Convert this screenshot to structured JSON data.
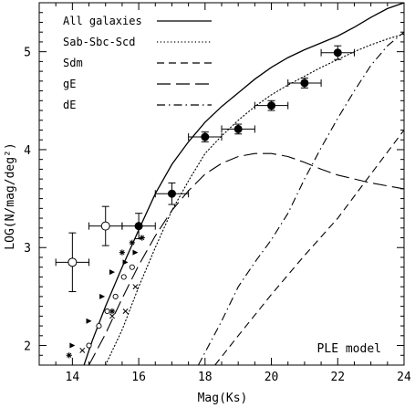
{
  "chart_data": {
    "type": "line",
    "xlabel": "Mag(Ks)",
    "ylabel": "LOG(N/mag/deg²)",
    "xlim": [
      13,
      24
    ],
    "ylim": [
      1.8,
      5.5
    ],
    "x_ticks": [
      14,
      16,
      18,
      20,
      22,
      24
    ],
    "x_tick_labels": [
      "14",
      "16",
      "18",
      "20",
      "22",
      "24"
    ],
    "y_ticks": [
      2,
      3,
      4,
      5
    ],
    "y_tick_labels": [
      "2",
      "3",
      "4",
      "5"
    ],
    "annotation": "PLE model",
    "legend_position": "top-left",
    "series": [
      {
        "name": "All galaxies",
        "style": "solid",
        "x": [
          14.35,
          14.6,
          15.0,
          15.5,
          16.0,
          16.5,
          17.0,
          17.5,
          18.0,
          18.5,
          19.0,
          19.5,
          20.0,
          20.5,
          21.0,
          21.5,
          22.0,
          22.5,
          23.0,
          23.5,
          24.0
        ],
        "y": [
          1.8,
          2.05,
          2.4,
          2.8,
          3.18,
          3.55,
          3.85,
          4.08,
          4.28,
          4.44,
          4.58,
          4.72,
          4.84,
          4.94,
          5.02,
          5.09,
          5.16,
          5.25,
          5.35,
          5.44,
          5.5
        ]
      },
      {
        "name": "Sab-Sbc-Scd",
        "style": "dotted",
        "x": [
          15.0,
          15.5,
          16.0,
          16.5,
          17.0,
          17.5,
          18.0,
          18.5,
          19.0,
          19.5,
          20.0,
          20.5,
          21.0,
          21.5,
          22.0,
          22.5,
          23.0,
          23.5,
          24.0
        ],
        "y": [
          1.8,
          2.16,
          2.6,
          3.0,
          3.38,
          3.68,
          3.96,
          4.14,
          4.3,
          4.44,
          4.56,
          4.66,
          4.75,
          4.84,
          4.92,
          5.0,
          5.07,
          5.13,
          5.18
        ]
      },
      {
        "name": "Sdm",
        "style": "dashed",
        "x": [
          18.3,
          19.0,
          20.0,
          21.0,
          22.0,
          23.0,
          24.0
        ],
        "y": [
          1.8,
          2.1,
          2.52,
          2.92,
          3.3,
          3.75,
          4.2
        ]
      },
      {
        "name": "gE",
        "style": "longdash",
        "x": [
          14.5,
          15.0,
          15.5,
          16.0,
          16.5,
          17.0,
          17.5,
          18.0,
          18.5,
          19.0,
          19.5,
          20.0,
          20.5,
          21.0,
          21.5,
          22.0,
          23.0,
          24.0
        ],
        "y": [
          1.8,
          2.12,
          2.48,
          2.82,
          3.12,
          3.38,
          3.58,
          3.75,
          3.86,
          3.93,
          3.96,
          3.96,
          3.93,
          3.87,
          3.8,
          3.74,
          3.66,
          3.6
        ]
      },
      {
        "name": "dE",
        "style": "dashdot",
        "x": [
          17.8,
          18.5,
          19.0,
          19.5,
          20.0,
          20.5,
          21.0,
          21.5,
          22.0,
          22.5,
          23.0,
          23.5,
          24.0
        ],
        "y": [
          1.8,
          2.25,
          2.6,
          2.85,
          3.08,
          3.35,
          3.7,
          4.02,
          4.32,
          4.6,
          4.86,
          5.06,
          5.2
        ]
      }
    ],
    "data_points": [
      {
        "marker": "filled-circle",
        "x": [
          16,
          17,
          18,
          19,
          20,
          21,
          22
        ],
        "y": [
          3.22,
          3.55,
          4.13,
          4.21,
          4.45,
          4.68,
          4.99
        ],
        "xerr": [
          0.5,
          0.5,
          0.5,
          0.5,
          0.5,
          0.5,
          0.5
        ],
        "yerr": [
          0.13,
          0.11,
          0.05,
          0.05,
          0.05,
          0.05,
          0.07
        ]
      },
      {
        "marker": "open-circle-errorbar",
        "x": [
          14,
          15
        ],
        "y": [
          2.85,
          3.22
        ],
        "xerr": [
          0.5,
          0.5
        ],
        "yerr": [
          0.3,
          0.2
        ]
      },
      {
        "marker": "open-circle",
        "x": [
          14.5,
          14.8,
          15.05,
          15.3,
          15.55,
          15.8
        ],
        "y": [
          2.0,
          2.2,
          2.35,
          2.5,
          2.7,
          2.8
        ]
      },
      {
        "marker": "asterisk",
        "x": [
          13.9,
          15.2,
          15.5,
          15.8,
          16.1
        ],
        "y": [
          1.9,
          2.35,
          2.95,
          3.05,
          3.1
        ]
      },
      {
        "marker": "cross",
        "x": [
          14.3,
          15.2,
          15.6,
          15.9
        ],
        "y": [
          1.95,
          2.3,
          2.35,
          2.6
        ]
      },
      {
        "marker": "triangle",
        "x": [
          14.0,
          14.5,
          14.9,
          15.2,
          15.6,
          15.9
        ],
        "y": [
          2.0,
          2.25,
          2.5,
          2.75,
          2.85,
          2.95
        ]
      }
    ]
  }
}
